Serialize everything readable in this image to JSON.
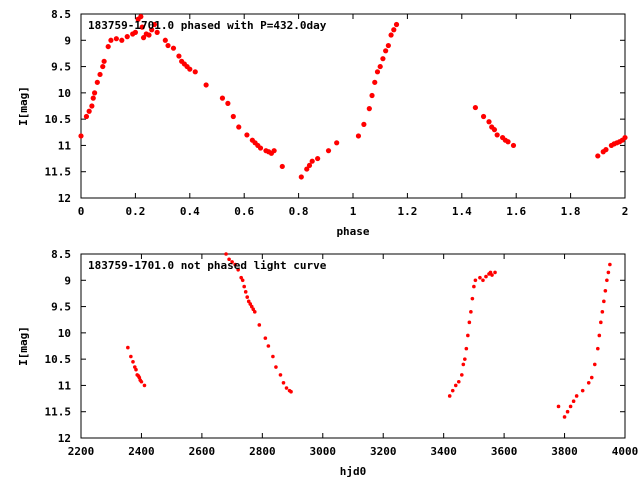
{
  "chart_data": [
    {
      "type": "scatter",
      "title": "183759-1701.0 phased with P=432.0day",
      "xlabel": "phase",
      "ylabel": "I[mag]",
      "xlim": [
        0,
        2
      ],
      "ylim": [
        8.5,
        12
      ],
      "y_inverted": true,
      "grid": false,
      "marker_color": "#ff0000",
      "xticks": [
        "0",
        "0.2",
        "0.4",
        "0.6",
        "0.8",
        "1",
        "1.2",
        "1.4",
        "1.6",
        "1.8",
        "2"
      ],
      "yticks": [
        "8.5",
        "9",
        "9.5",
        "10",
        "10.5",
        "11",
        "11.5",
        "12"
      ],
      "series": [
        {
          "points": [
            [
              0.0,
              10.82
            ],
            [
              0.02,
              10.45
            ],
            [
              0.03,
              10.35
            ],
            [
              0.04,
              10.25
            ],
            [
              0.045,
              10.1
            ],
            [
              0.05,
              10.0
            ],
            [
              0.06,
              9.8
            ],
            [
              0.07,
              9.65
            ],
            [
              0.08,
              9.5
            ],
            [
              0.085,
              9.4
            ],
            [
              0.1,
              9.12
            ],
            [
              0.11,
              9.0
            ],
            [
              0.13,
              8.97
            ],
            [
              0.15,
              9.0
            ],
            [
              0.17,
              8.93
            ],
            [
              0.19,
              8.88
            ],
            [
              0.2,
              8.85
            ],
            [
              0.21,
              8.6
            ],
            [
              0.22,
              8.55
            ],
            [
              0.225,
              8.75
            ],
            [
              0.23,
              8.95
            ],
            [
              0.24,
              8.88
            ],
            [
              0.25,
              8.9
            ],
            [
              0.26,
              8.8
            ],
            [
              0.27,
              8.7
            ],
            [
              0.28,
              8.85
            ],
            [
              0.31,
              9.0
            ],
            [
              0.32,
              9.1
            ],
            [
              0.34,
              9.15
            ],
            [
              0.36,
              9.3
            ],
            [
              0.37,
              9.4
            ],
            [
              0.38,
              9.45
            ],
            [
              0.39,
              9.5
            ],
            [
              0.4,
              9.55
            ],
            [
              0.42,
              9.6
            ],
            [
              0.46,
              9.85
            ],
            [
              0.52,
              10.1
            ],
            [
              0.54,
              10.2
            ],
            [
              0.56,
              10.45
            ],
            [
              0.58,
              10.65
            ],
            [
              0.61,
              10.8
            ],
            [
              0.63,
              10.9
            ],
            [
              0.64,
              10.95
            ],
            [
              0.65,
              11.0
            ],
            [
              0.66,
              11.05
            ],
            [
              0.68,
              11.1
            ],
            [
              0.69,
              11.12
            ],
            [
              0.7,
              11.15
            ],
            [
              0.71,
              11.1
            ],
            [
              0.74,
              11.4
            ],
            [
              0.81,
              11.6
            ],
            [
              0.83,
              11.45
            ],
            [
              0.84,
              11.38
            ],
            [
              0.85,
              11.3
            ],
            [
              0.87,
              11.25
            ],
            [
              0.91,
              11.1
            ],
            [
              0.94,
              10.95
            ],
            [
              1.02,
              10.82
            ],
            [
              1.04,
              10.6
            ],
            [
              1.06,
              10.3
            ],
            [
              1.07,
              10.05
            ],
            [
              1.08,
              9.8
            ],
            [
              1.09,
              9.6
            ],
            [
              1.1,
              9.5
            ],
            [
              1.11,
              9.35
            ],
            [
              1.12,
              9.2
            ],
            [
              1.13,
              9.1
            ],
            [
              1.14,
              8.9
            ],
            [
              1.15,
              8.8
            ],
            [
              1.16,
              8.7
            ],
            [
              1.45,
              10.28
            ],
            [
              1.48,
              10.45
            ],
            [
              1.5,
              10.55
            ],
            [
              1.51,
              10.65
            ],
            [
              1.52,
              10.7
            ],
            [
              1.53,
              10.8
            ],
            [
              1.55,
              10.85
            ],
            [
              1.56,
              10.9
            ],
            [
              1.57,
              10.93
            ],
            [
              1.59,
              11.0
            ],
            [
              1.9,
              11.2
            ],
            [
              1.92,
              11.12
            ],
            [
              1.93,
              11.08
            ],
            [
              1.95,
              11.0
            ],
            [
              1.96,
              10.97
            ],
            [
              1.97,
              10.95
            ],
            [
              1.98,
              10.93
            ],
            [
              1.99,
              10.9
            ],
            [
              2.0,
              10.85
            ]
          ]
        }
      ]
    },
    {
      "type": "scatter",
      "title": "183759-1701.0 not phased light curve",
      "xlabel": "hjd0",
      "ylabel": "I[mag]",
      "xlim": [
        2200,
        4000
      ],
      "ylim": [
        8.5,
        12
      ],
      "y_inverted": true,
      "grid": false,
      "marker_color": "#ff0000",
      "xticks": [
        "2200",
        "2400",
        "2600",
        "2800",
        "3000",
        "3200",
        "3400",
        "3600",
        "3800",
        "4000"
      ],
      "yticks": [
        "8.5",
        "9",
        "9.5",
        "10",
        "10.5",
        "11",
        "11.5",
        "12"
      ],
      "series": [
        {
          "points": [
            [
              2355,
              10.28
            ],
            [
              2365,
              10.45
            ],
            [
              2372,
              10.55
            ],
            [
              2378,
              10.65
            ],
            [
              2382,
              10.7
            ],
            [
              2386,
              10.8
            ],
            [
              2390,
              10.82
            ],
            [
              2393,
              10.85
            ],
            [
              2396,
              10.9
            ],
            [
              2400,
              10.93
            ],
            [
              2410,
              11.0
            ],
            [
              2680,
              8.5
            ],
            [
              2690,
              8.6
            ],
            [
              2700,
              8.65
            ],
            [
              2710,
              8.7
            ],
            [
              2720,
              8.8
            ],
            [
              2730,
              8.95
            ],
            [
              2735,
              9.0
            ],
            [
              2740,
              9.12
            ],
            [
              2745,
              9.22
            ],
            [
              2750,
              9.32
            ],
            [
              2755,
              9.4
            ],
            [
              2760,
              9.45
            ],
            [
              2765,
              9.5
            ],
            [
              2770,
              9.55
            ],
            [
              2775,
              9.6
            ],
            [
              2790,
              9.85
            ],
            [
              2810,
              10.1
            ],
            [
              2820,
              10.25
            ],
            [
              2835,
              10.45
            ],
            [
              2845,
              10.65
            ],
            [
              2860,
              10.8
            ],
            [
              2870,
              10.95
            ],
            [
              2880,
              11.05
            ],
            [
              2890,
              11.1
            ],
            [
              2895,
              11.12
            ],
            [
              3420,
              11.2
            ],
            [
              3430,
              11.1
            ],
            [
              3440,
              11.0
            ],
            [
              3450,
              10.93
            ],
            [
              3460,
              10.8
            ],
            [
              3465,
              10.6
            ],
            [
              3470,
              10.5
            ],
            [
              3475,
              10.3
            ],
            [
              3480,
              10.05
            ],
            [
              3485,
              9.8
            ],
            [
              3490,
              9.6
            ],
            [
              3495,
              9.35
            ],
            [
              3500,
              9.12
            ],
            [
              3505,
              9.0
            ],
            [
              3520,
              8.95
            ],
            [
              3530,
              9.0
            ],
            [
              3540,
              8.93
            ],
            [
              3550,
              8.88
            ],
            [
              3555,
              8.85
            ],
            [
              3560,
              8.9
            ],
            [
              3570,
              8.85
            ],
            [
              3780,
              11.4
            ],
            [
              3800,
              11.6
            ],
            [
              3810,
              11.5
            ],
            [
              3820,
              11.4
            ],
            [
              3830,
              11.3
            ],
            [
              3840,
              11.2
            ],
            [
              3860,
              11.1
            ],
            [
              3880,
              10.95
            ],
            [
              3890,
              10.85
            ],
            [
              3900,
              10.6
            ],
            [
              3910,
              10.3
            ],
            [
              3915,
              10.05
            ],
            [
              3920,
              9.8
            ],
            [
              3925,
              9.6
            ],
            [
              3930,
              9.4
            ],
            [
              3935,
              9.2
            ],
            [
              3940,
              9.0
            ],
            [
              3945,
              8.85
            ],
            [
              3950,
              8.7
            ]
          ]
        }
      ]
    }
  ]
}
